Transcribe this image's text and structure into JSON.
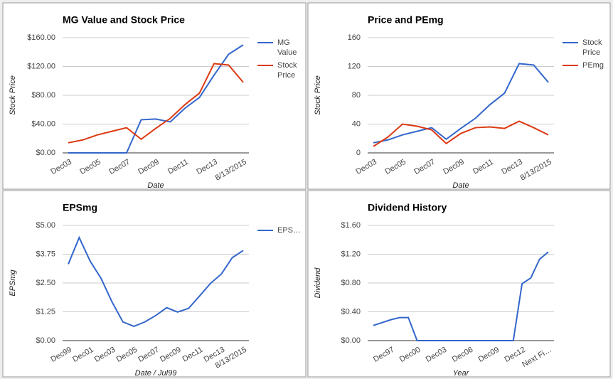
{
  "chart_data": [
    {
      "type": "line",
      "title": "MG Value and Stock Price",
      "xlabel": "Date",
      "ylabel": "Stock Price",
      "legend": "right",
      "categories": [
        "Dec03",
        null,
        "Dec05",
        null,
        "Dec07",
        null,
        "Dec09",
        null,
        "Dec11",
        null,
        "Dec13",
        null,
        "8/13/2015"
      ],
      "series": [
        {
          "name": "MG Value",
          "color": "#3366cc",
          "values": [
            0,
            0,
            0,
            0,
            0,
            46,
            47,
            43,
            62,
            77,
            108,
            137,
            150
          ]
        },
        {
          "name": "Stock Price",
          "color": "#dc3912",
          "values": [
            14,
            18,
            25,
            30,
            35,
            19,
            34,
            48,
            67,
            83,
            124,
            122,
            98
          ]
        }
      ],
      "ylim": [
        0,
        160
      ],
      "yticks": [
        {
          "value": 0,
          "label": "$0.00"
        },
        {
          "value": 40,
          "label": "$40.00"
        },
        {
          "value": 80,
          "label": "$80.00"
        },
        {
          "value": 120,
          "label": "$120.00"
        },
        {
          "value": 160,
          "label": "$160.00"
        }
      ],
      "grid": true
    },
    {
      "type": "line",
      "title": "Price and PEmg",
      "xlabel": "Date",
      "ylabel": "Stock Price",
      "legend": "right",
      "categories": [
        "Dec03",
        null,
        "Dec05",
        null,
        "Dec07",
        null,
        "Dec09",
        null,
        "Dec11",
        null,
        "Dec13",
        null,
        "8/13/2015"
      ],
      "series": [
        {
          "name": "Stock Price",
          "color": "#3366cc",
          "values": [
            14,
            18,
            25,
            30,
            35,
            19,
            34,
            48,
            67,
            83,
            124,
            122,
            98
          ]
        },
        {
          "name": "PEmg",
          "color": "#dc3912",
          "values": [
            9,
            22,
            40,
            37,
            32,
            13,
            27,
            35,
            36,
            34,
            44,
            35,
            25
          ]
        }
      ],
      "ylim": [
        0,
        160
      ],
      "yticks": [
        0,
        40,
        80,
        120,
        160
      ],
      "grid": true
    },
    {
      "type": "line",
      "title": "EPSmg",
      "xlabel": "Date / Jul99",
      "ylabel": "EPSmg",
      "legend": "right",
      "categories": [
        "Dec99",
        null,
        "Dec01",
        null,
        "Dec03",
        null,
        "Dec05",
        null,
        "Dec07",
        null,
        "Dec09",
        null,
        "Dec11",
        null,
        "Dec13",
        null,
        "8/13/2015"
      ],
      "series": [
        {
          "name": "EPS…",
          "color": "#3366cc",
          "values": [
            3.32,
            4.47,
            3.45,
            2.7,
            1.68,
            0.81,
            0.62,
            0.81,
            1.09,
            1.43,
            1.24,
            1.4,
            1.93,
            2.48,
            2.89,
            3.6,
            3.91
          ]
        }
      ],
      "ylim": [
        0,
        5
      ],
      "yticks": [
        {
          "value": 0,
          "label": "$0.00"
        },
        {
          "value": 1.25,
          "label": "$1.25"
        },
        {
          "value": 2.5,
          "label": "$2.50"
        },
        {
          "value": 3.75,
          "label": "$3.75"
        },
        {
          "value": 5,
          "label": "$5.00"
        }
      ],
      "grid": true
    },
    {
      "type": "line",
      "title": "Dividend History",
      "xlabel": "Year",
      "ylabel": "Dividend",
      "categories": [
        null,
        null,
        "Dec97",
        null,
        null,
        "Dec00",
        null,
        null,
        "Dec03",
        null,
        null,
        "Dec06",
        null,
        null,
        "Dec09",
        null,
        null,
        "Dec12",
        null,
        null,
        "Next Fi…"
      ],
      "series": [
        {
          "color": "#3366cc",
          "values": [
            0.21,
            0.25,
            0.29,
            0.32,
            0.32,
            0,
            0,
            0,
            0,
            0,
            0,
            0,
            0,
            0,
            0,
            0,
            0,
            0.79,
            0.87,
            1.13,
            1.23
          ]
        }
      ],
      "ylim": [
        0,
        1.6
      ],
      "yticks": [
        {
          "value": 0,
          "label": "$0.00"
        },
        {
          "value": 0.4,
          "label": "$0.40"
        },
        {
          "value": 0.8,
          "label": "$0.80"
        },
        {
          "value": 1.2,
          "label": "$1.20"
        },
        {
          "value": 1.6,
          "label": "$1.60"
        }
      ],
      "grid": true
    }
  ]
}
